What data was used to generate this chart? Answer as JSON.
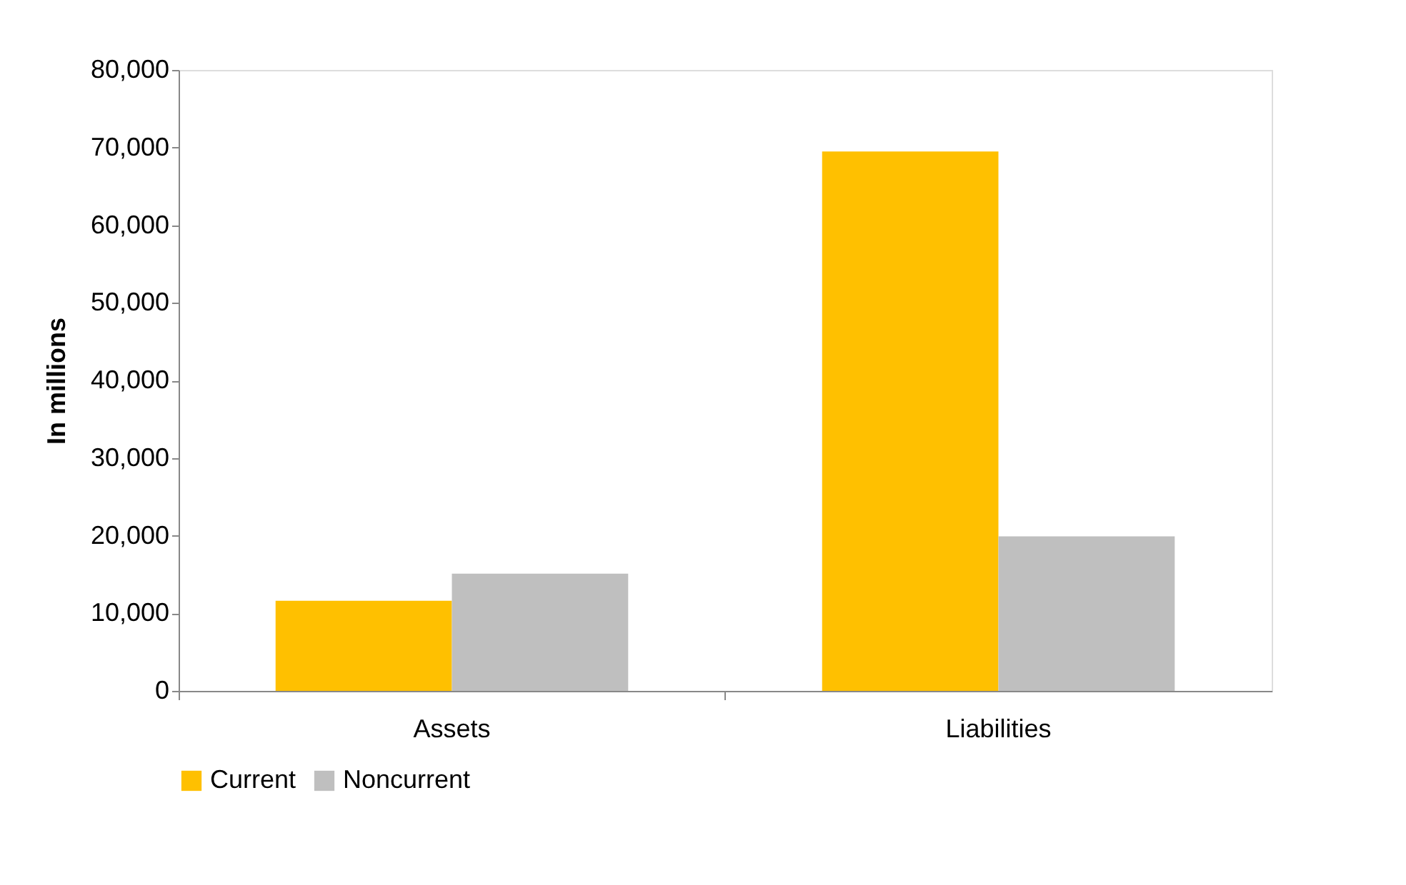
{
  "chart_data": {
    "type": "bar",
    "ylabel": "In millions",
    "categories": [
      "Assets",
      "Liabilities"
    ],
    "series": [
      {
        "name": "Current",
        "color": "#ffc000",
        "values": [
          11600,
          69500
        ]
      },
      {
        "name": "Noncurrent",
        "color": "#bfbfbf",
        "values": [
          15100,
          19900
        ]
      }
    ],
    "ylim": [
      0,
      80000
    ],
    "yticks": [
      0,
      {
        "value": 10000,
        "label": "10,000"
      },
      {
        "value": 20000,
        "label": "20,000"
      },
      {
        "value": 30000,
        "label": "30,000"
      },
      {
        "value": 40000,
        "label": "40,000"
      },
      {
        "value": 50000,
        "label": "50,000"
      },
      {
        "value": 60000,
        "label": "60,000"
      },
      {
        "value": 70000,
        "label": "70,000"
      },
      {
        "value": 80000,
        "label": "80,000"
      }
    ],
    "grid": false,
    "legend": "bottom"
  }
}
